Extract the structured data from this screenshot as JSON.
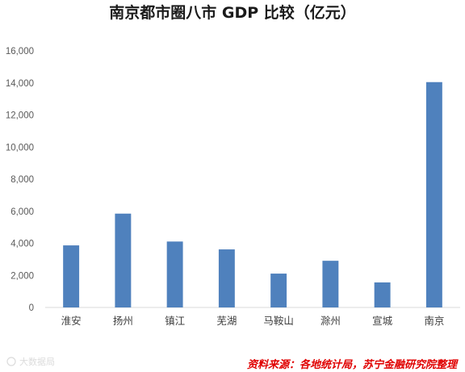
{
  "chart_data": {
    "type": "bar",
    "title": "南京都市圈八市 GDP 比较（亿元）",
    "categories": [
      "淮安",
      "扬州",
      "镇江",
      "芜湖",
      "马鞍山",
      "滁州",
      "宣城",
      "南京"
    ],
    "series": [
      {
        "values": [
          3870,
          5850,
          4110,
          3620,
          2110,
          2910,
          1560,
          14050
        ]
      }
    ],
    "ylim": [
      0,
      16000
    ],
    "yticks": [
      0,
      2000,
      4000,
      6000,
      8000,
      10000,
      12000,
      14000,
      16000
    ],
    "ytick_labels": [
      "0",
      "2,000",
      "4,000",
      "6,000",
      "8,000",
      "10,000",
      "12,000",
      "14,000",
      "16,000"
    ],
    "grid": false,
    "legend": "none",
    "bar_color": "#4f81bd",
    "axis_color": "#d9d9d9"
  },
  "source_note": "资料来源：各地统计局，苏宁金融研究院整理",
  "watermark": "大数据局"
}
